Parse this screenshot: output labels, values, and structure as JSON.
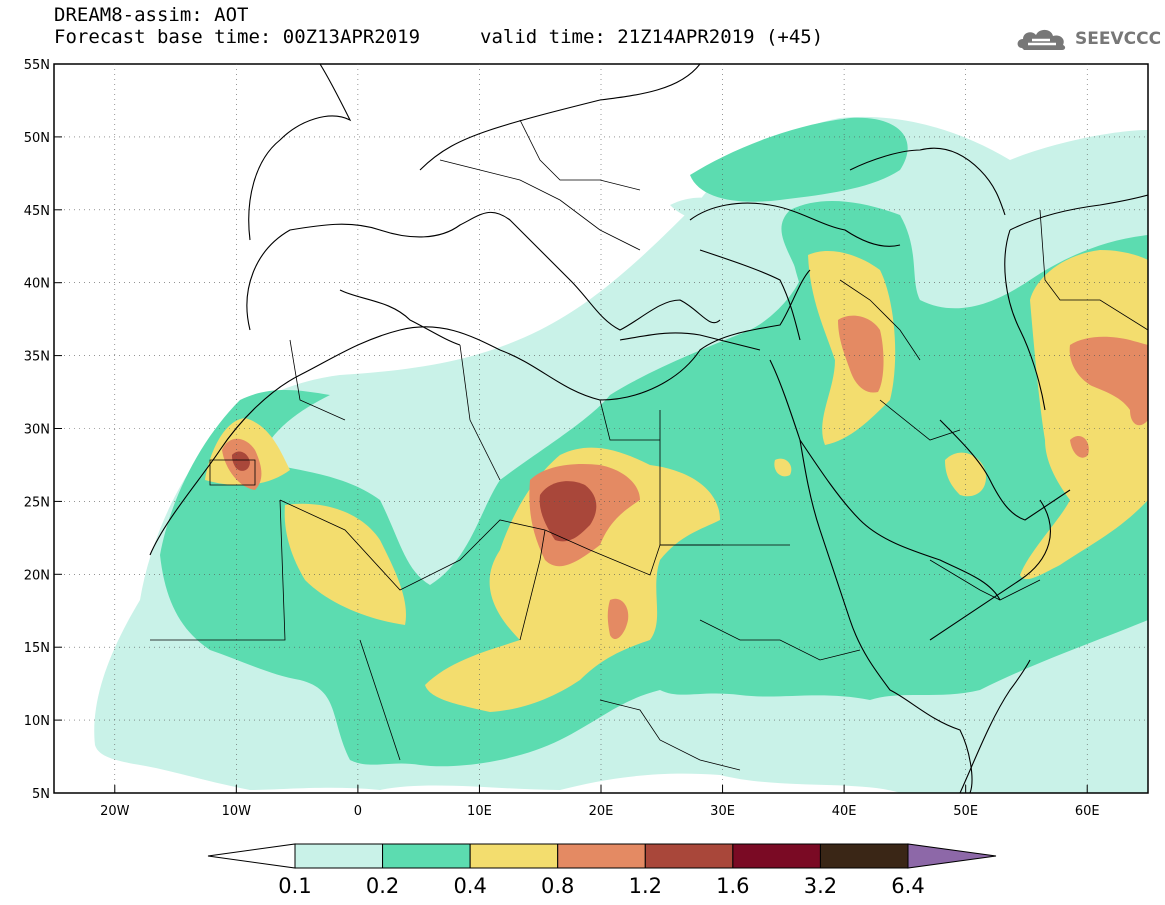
{
  "header": {
    "title_line1": "DREAM8-assim: AOT",
    "title_line2": "Forecast base time: 00Z13APR2019",
    "valid_time": "valid time: 21Z14APR2019 (+45)"
  },
  "logo": {
    "text": "SEEVCCC",
    "icon": "cloud-logo-icon"
  },
  "map": {
    "lat_labels": [
      "55N",
      "50N",
      "45N",
      "40N",
      "35N",
      "30N",
      "25N",
      "20N",
      "15N",
      "10N",
      "5N"
    ],
    "lon_labels": [
      "20W",
      "10W",
      "0",
      "10E",
      "20E",
      "30E",
      "40E",
      "50E",
      "60E"
    ],
    "grid": "dotted",
    "lon_range": [
      -25,
      65
    ],
    "lat_range": [
      5,
      55
    ]
  },
  "colorbar": {
    "labels": [
      "0.1",
      "0.2",
      "0.4",
      "0.8",
      "1.2",
      "1.6",
      "3.2",
      "6.4"
    ],
    "colors": [
      "#ffffff",
      "#c9f2e8",
      "#5cdcb0",
      "#f3dd6e",
      "#e48a63",
      "#a9473a",
      "#7a0a24",
      "#3a2616",
      "#8d68a8"
    ]
  }
}
